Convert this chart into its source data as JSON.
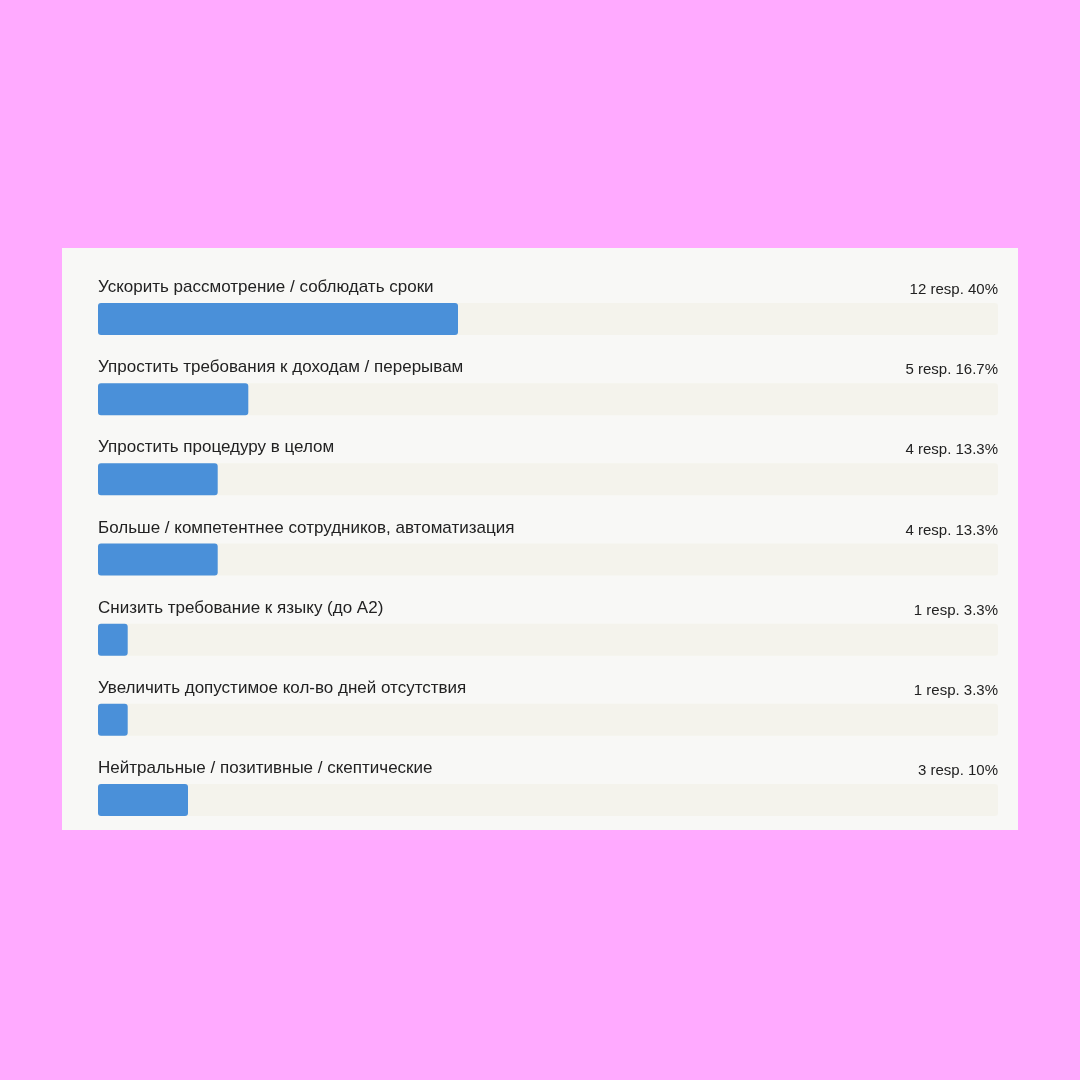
{
  "chart_data": {
    "type": "bar",
    "orientation": "horizontal",
    "categories": [
      "Ускорить рассмотрение / соблюдать сроки",
      "Упростить требования к доходам / перерывам",
      "Упростить процедуру в целом",
      "Больше / компетентнее сотрудников, автоматизация",
      "Снизить требование к языку (до A2)",
      "Увеличить допустимое кол-во дней отсутствия",
      "Нейтральные / позитивные / скептические"
    ],
    "values": [
      40,
      16.7,
      13.3,
      13.3,
      3.3,
      3.3,
      10
    ],
    "value_labels": [
      "12 resp. 40%",
      "5 resp. 16.7%",
      "4 resp. 13.3%",
      "4 resp. 13.3%",
      "1 resp. 3.3%",
      "1 resp. 3.3%",
      "3 resp. 10%"
    ],
    "color": "#4a90d9",
    "xlim": [
      0,
      100
    ],
    "tick_labels": "y"
  }
}
